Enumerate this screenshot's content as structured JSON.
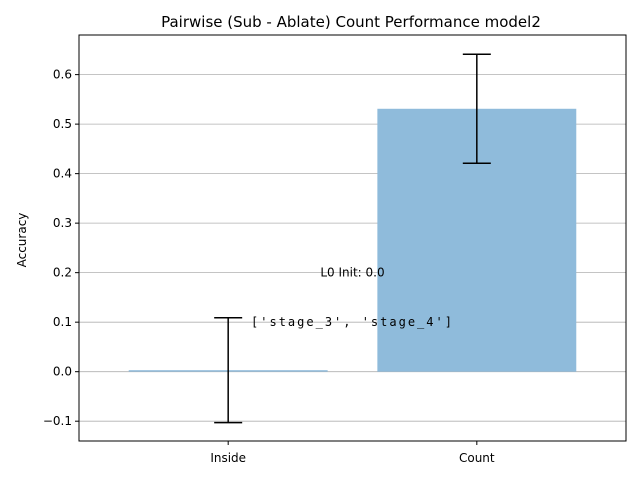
{
  "chart_data": {
    "type": "bar",
    "title": "Pairwise (Sub - Ablate) Count Performance model2",
    "xlabel": "",
    "ylabel": "Accuracy",
    "categories": [
      "Inside",
      "Count"
    ],
    "values": [
      0.003,
      0.531
    ],
    "error_low": [
      -0.103,
      0.421
    ],
    "error_high": [
      0.109,
      0.641
    ],
    "ylim": [
      -0.14,
      0.68
    ],
    "yticks": [
      -0.1,
      0.0,
      0.1,
      0.2,
      0.3,
      0.4,
      0.5,
      0.6
    ],
    "ytick_labels": [
      "−0.1",
      "0.0",
      "0.1",
      "0.2",
      "0.3",
      "0.4",
      "0.5",
      "0.6"
    ],
    "grid": "y",
    "bar_color": "#8fbbdb",
    "annotations": [
      {
        "text": "['stage_3', 'stage_4']",
        "x": 0.5,
        "y": 0.1
      },
      {
        "text": "L0 Init: 0.0",
        "x": 0.5,
        "y": 0.2
      }
    ]
  }
}
